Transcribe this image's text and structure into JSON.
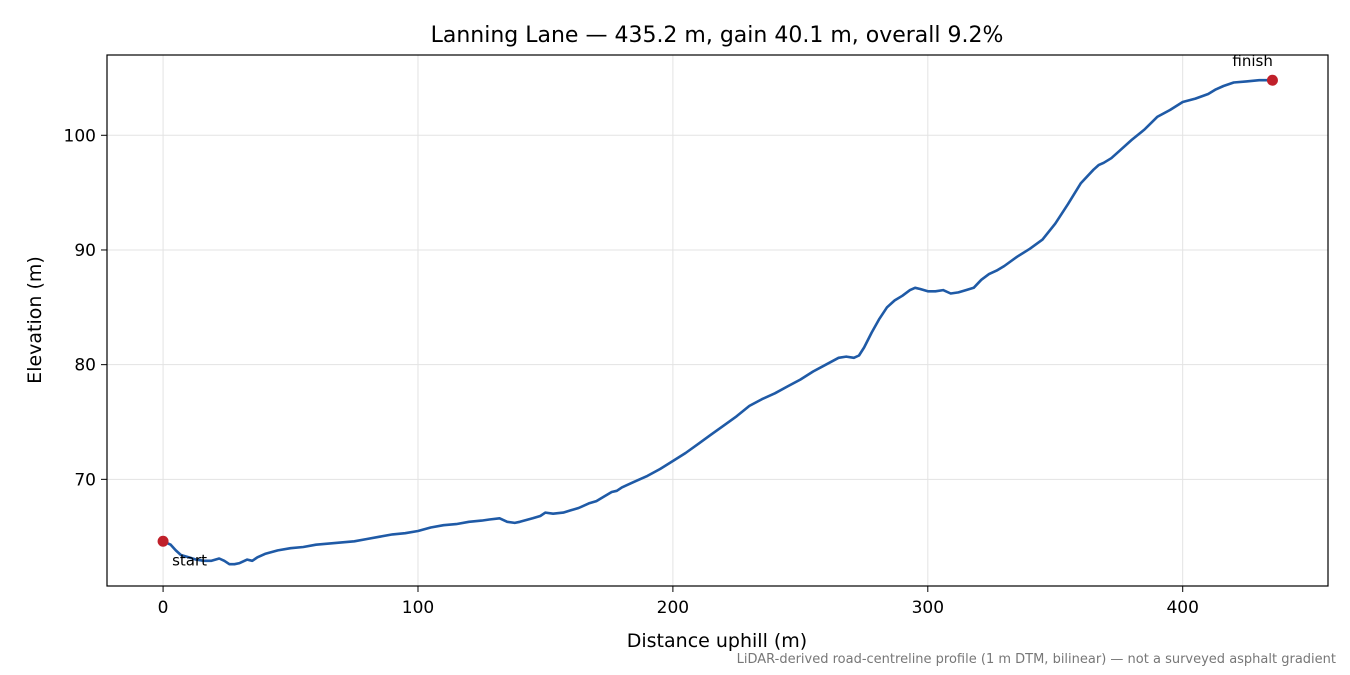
{
  "chart_data": {
    "type": "line",
    "title": "Lanning Lane — 435.2 m, gain 40.1 m, overall 9.2%",
    "xlabel": "Distance uphill (m)",
    "ylabel": "Elevation (m)",
    "xlim": [
      -22,
      457
    ],
    "ylim": [
      60.7,
      107.0
    ],
    "xticks": [
      0,
      100,
      200,
      300,
      400
    ],
    "yticks": [
      70,
      80,
      90,
      100
    ],
    "grid": true,
    "line_color": "#1f5aa6",
    "marker_color": "#c0202a",
    "series": [
      {
        "x": [
          0,
          3,
          5,
          7,
          10,
          13,
          16,
          19,
          22,
          24,
          26,
          28,
          30,
          33,
          35,
          37,
          40,
          45,
          50,
          55,
          60,
          65,
          70,
          75,
          80,
          85,
          90,
          95,
          100,
          105,
          110,
          115,
          120,
          125,
          128,
          132,
          135,
          138,
          140,
          145,
          148,
          150,
          153,
          157,
          160,
          163,
          167,
          170,
          173,
          176,
          178,
          180,
          182,
          185,
          190,
          195,
          200,
          205,
          210,
          215,
          220,
          225,
          230,
          235,
          240,
          245,
          250,
          255,
          260,
          265,
          268,
          271,
          273,
          275,
          278,
          281,
          284,
          287,
          290,
          293,
          295,
          297,
          300,
          303,
          306,
          309,
          312,
          315,
          318,
          321,
          324,
          327,
          330,
          335,
          340,
          345,
          350,
          355,
          360,
          365,
          367,
          369,
          372,
          375,
          380,
          385,
          390,
          395,
          400,
          405,
          410,
          413,
          416,
          420,
          425,
          430,
          435.2
        ],
        "y": [
          64.6,
          64.3,
          63.8,
          63.4,
          63.2,
          63.0,
          62.9,
          62.9,
          63.1,
          62.9,
          62.6,
          62.6,
          62.7,
          63.0,
          62.9,
          63.2,
          63.5,
          63.8,
          64.0,
          64.1,
          64.3,
          64.4,
          64.5,
          64.6,
          64.8,
          65.0,
          65.2,
          65.3,
          65.5,
          65.8,
          66.0,
          66.1,
          66.3,
          66.4,
          66.5,
          66.6,
          66.3,
          66.2,
          66.3,
          66.6,
          66.8,
          67.1,
          67.0,
          67.1,
          67.3,
          67.5,
          67.9,
          68.1,
          68.5,
          68.9,
          69.0,
          69.3,
          69.5,
          69.8,
          70.3,
          70.9,
          71.6,
          72.3,
          73.1,
          73.9,
          74.7,
          75.5,
          76.4,
          77.0,
          77.5,
          78.1,
          78.7,
          79.4,
          80.0,
          80.6,
          80.7,
          80.6,
          80.8,
          81.5,
          82.8,
          84.0,
          85.0,
          85.6,
          86.0,
          86.5,
          86.7,
          86.6,
          86.4,
          86.4,
          86.5,
          86.2,
          86.3,
          86.5,
          86.7,
          87.4,
          87.9,
          88.2,
          88.6,
          89.4,
          90.1,
          90.9,
          92.3,
          94.0,
          95.8,
          97.0,
          97.4,
          97.6,
          98.0,
          98.6,
          99.6,
          100.5,
          101.6,
          102.2,
          102.9,
          103.2,
          103.6,
          104.0,
          104.3,
          104.6,
          104.7,
          104.8,
          104.8
        ]
      }
    ],
    "annotations": [
      {
        "text": "start",
        "x": 0,
        "y": 64.6
      },
      {
        "text": "finish",
        "x": 435.2,
        "y": 104.8
      }
    ]
  },
  "footnote": "LiDAR-derived road-centreline profile (1 m DTM, bilinear) — not a surveyed asphalt gradient"
}
